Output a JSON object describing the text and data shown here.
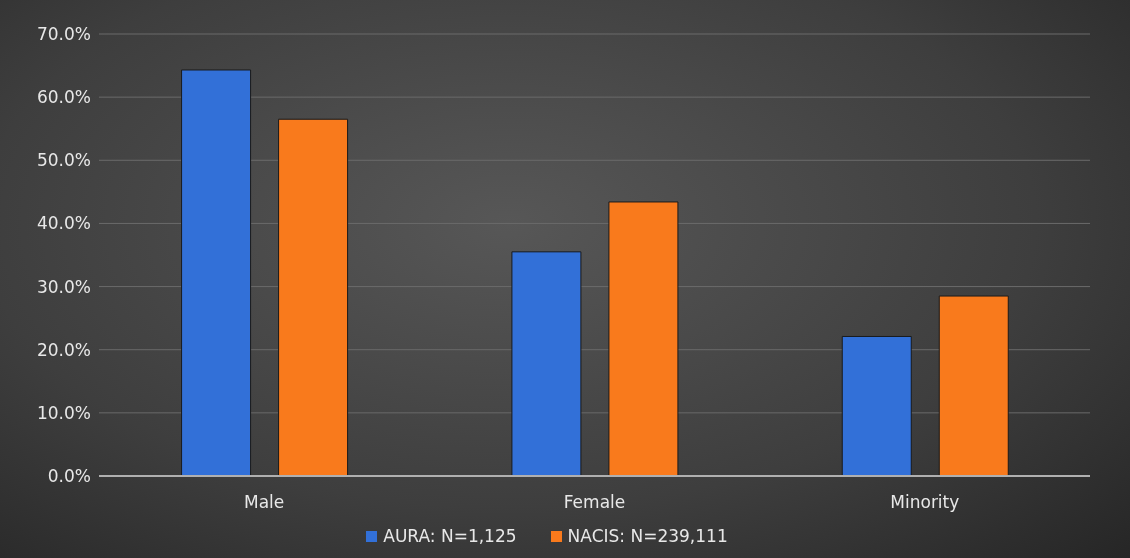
{
  "chart_data": {
    "type": "bar",
    "categories": [
      "Male",
      "Female",
      "Minority"
    ],
    "series": [
      {
        "name": "AURA: N=1,125",
        "color": "#3270d8",
        "values": [
          64.3,
          35.5,
          22.1
        ]
      },
      {
        "name": "NACIS: N=239,111",
        "color": "#f97a1c",
        "values": [
          56.5,
          43.4,
          28.5
        ]
      }
    ],
    "ylim": [
      0,
      70
    ],
    "yticks": [
      {
        "value": 0,
        "label": "0.0%"
      },
      {
        "value": 10,
        "label": "10.0%"
      },
      {
        "value": 20,
        "label": "20.0%"
      },
      {
        "value": 30,
        "label": "30.0%"
      },
      {
        "value": 40,
        "label": "40.0%"
      },
      {
        "value": 50,
        "label": "50.0%"
      },
      {
        "value": 60,
        "label": "60.0%"
      },
      {
        "value": 70,
        "label": "70.0%"
      }
    ],
    "grid": "y",
    "legend": "bottom"
  }
}
